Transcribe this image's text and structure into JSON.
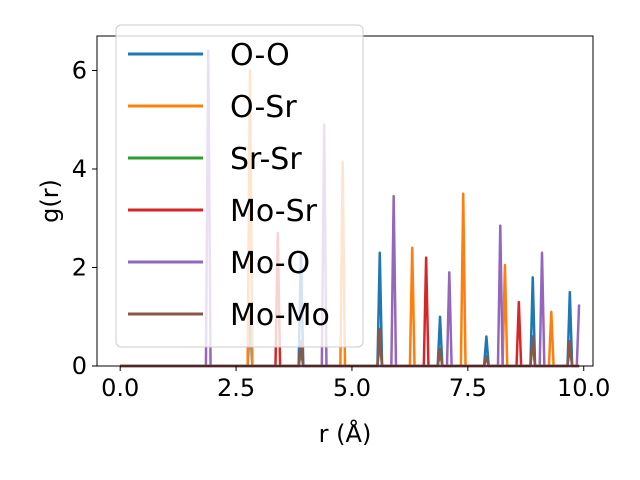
{
  "chart_data": {
    "type": "line",
    "xlabel": "r (Å)",
    "ylabel": "g(r)",
    "xlim": [
      -0.5,
      10.2
    ],
    "ylim": [
      0,
      6.7
    ],
    "xticks": [
      0.0,
      2.5,
      5.0,
      7.5,
      10.0
    ],
    "xtick_labels": [
      "0.0",
      "2.5",
      "5.0",
      "7.5",
      "10.0"
    ],
    "yticks": [
      0,
      2,
      4,
      6
    ],
    "ytick_labels": [
      "0",
      "2",
      "4",
      "6"
    ],
    "grid": false,
    "legend_position": "upper-left",
    "peak_halfwidth": 0.05,
    "x_max": 9.9,
    "series": [
      {
        "name": "O-O",
        "color": "#1f77b4",
        "peaks": [
          [
            2.8,
            1.1
          ],
          [
            3.9,
            2.3
          ],
          [
            5.6,
            2.3
          ],
          [
            6.9,
            1.0
          ],
          [
            7.9,
            0.6
          ],
          [
            8.9,
            1.8
          ],
          [
            9.7,
            1.5
          ]
        ]
      },
      {
        "name": "O-Sr",
        "color": "#ff7f0e",
        "peaks": [
          [
            2.8,
            6.0
          ],
          [
            4.8,
            4.15
          ],
          [
            6.3,
            2.4
          ],
          [
            7.4,
            3.5
          ],
          [
            8.3,
            2.05
          ],
          [
            9.3,
            1.1
          ]
        ]
      },
      {
        "name": "Sr-Sr",
        "color": "#2ca02c",
        "peaks": [
          [
            3.9,
            0.3
          ],
          [
            5.6,
            0.5
          ],
          [
            6.9,
            0.3
          ],
          [
            7.9,
            0.2
          ],
          [
            8.9,
            0.5
          ],
          [
            9.7,
            0.4
          ]
        ]
      },
      {
        "name": "Mo-Sr",
        "color": "#d62728",
        "peaks": [
          [
            3.4,
            2.7
          ],
          [
            6.6,
            2.2
          ],
          [
            8.6,
            1.3
          ]
        ]
      },
      {
        "name": "Mo-O",
        "color": "#9467bd",
        "peaks": [
          [
            1.9,
            6.4
          ],
          [
            4.4,
            4.9
          ],
          [
            5.9,
            3.45
          ],
          [
            7.1,
            1.9
          ],
          [
            8.2,
            2.85
          ],
          [
            9.1,
            2.3
          ],
          [
            9.9,
            1.25
          ]
        ]
      },
      {
        "name": "Mo-Mo",
        "color": "#8c564b",
        "peaks": [
          [
            3.9,
            0.5
          ],
          [
            5.6,
            0.75
          ],
          [
            6.9,
            0.35
          ],
          [
            7.9,
            0.2
          ],
          [
            8.9,
            0.6
          ],
          [
            9.7,
            0.5
          ]
        ]
      }
    ]
  }
}
